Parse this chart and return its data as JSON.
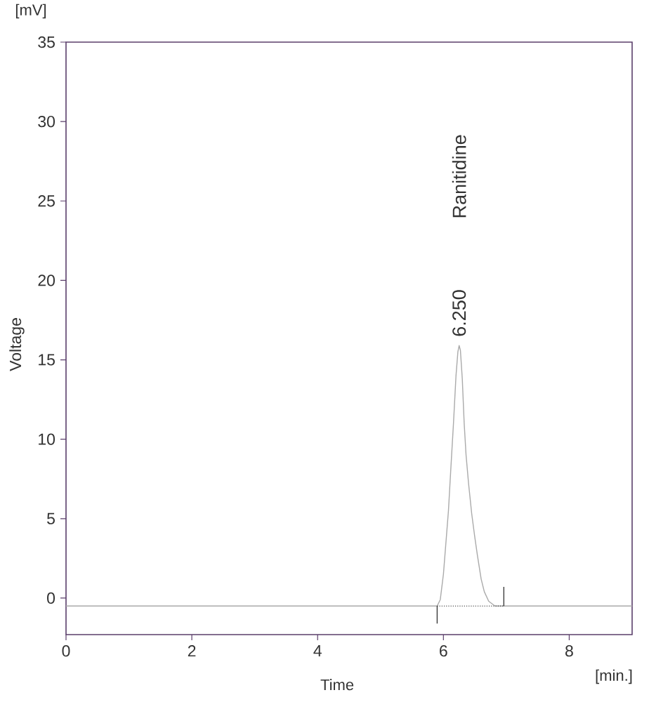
{
  "chart_data": {
    "type": "line",
    "xlabel": "Time",
    "ylabel": "Voltage",
    "xlim": [
      0,
      9
    ],
    "ylim": [
      -2.3,
      35
    ],
    "xticks": [
      0,
      2,
      4,
      6,
      8
    ],
    "yticks": [
      0,
      5,
      10,
      15,
      20,
      25,
      30,
      35
    ],
    "annotations": [
      "[mV]",
      "[min.]",
      {
        "text": "6.250",
        "x": 6.25,
        "y": 15.9
      },
      "Ranitidine"
    ],
    "series": [
      {
        "color": "#aaaaaa",
        "x": [
          0,
          5.8,
          5.9,
          5.95,
          6.0,
          6.04,
          6.08,
          6.12,
          6.16,
          6.2,
          6.23,
          6.25,
          6.27,
          6.3,
          6.33,
          6.36,
          6.4,
          6.45,
          6.5,
          6.54,
          6.6,
          6.65,
          6.72,
          6.82,
          9.0
        ],
        "values": [
          -0.5,
          -0.5,
          -0.5,
          -0.1,
          1.5,
          3.5,
          5.5,
          8.3,
          11.0,
          14.0,
          15.5,
          15.9,
          15.6,
          13.8,
          11.0,
          9.0,
          7.2,
          5.3,
          3.8,
          2.7,
          1.2,
          0.4,
          -0.2,
          -0.5,
          -0.5
        ]
      },
      {
        "color": "#222222",
        "line_style": "dotted",
        "x": [
          5.9,
          6.96
        ],
        "values": [
          -0.5,
          -0.5
        ]
      },
      {
        "color": "#222222",
        "x": [
          5.9,
          5.9
        ],
        "values": [
          -0.5,
          -1.6
        ]
      },
      {
        "color": "#222222",
        "x": [
          6.96,
          6.96
        ],
        "values": [
          -0.5,
          0.7
        ]
      }
    ]
  }
}
